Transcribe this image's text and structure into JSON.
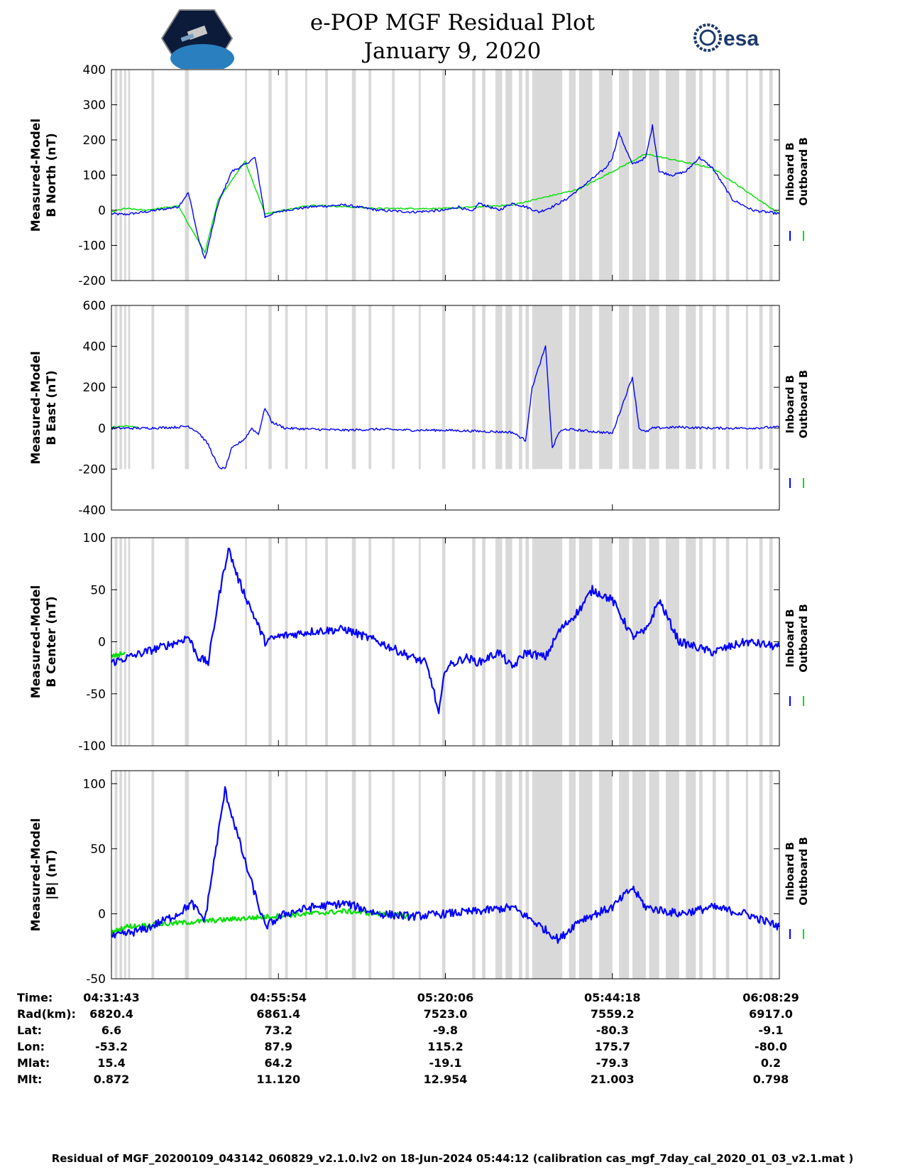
{
  "header": {
    "title_line1": "e-POP MGF Residual Plot",
    "title_line2": "January 9, 2020",
    "logo_left": "cassiope-satellite-logo",
    "logo_right_text": "esa"
  },
  "colors": {
    "inboard": "#0000ff",
    "outboard": "#00e000",
    "gap_shading": "#d9d9d9"
  },
  "legend": {
    "inboard_label": "Inboard B",
    "outboard_label": "Outboard B"
  },
  "chart_data": [
    {
      "type": "line",
      "title": "B North residual",
      "ylabel_line1": "Measured-Model",
      "ylabel_line2": "B North (nT)",
      "ylim": [
        -200,
        400
      ],
      "yticks": [
        -200,
        -100,
        0,
        100,
        200,
        300,
        400
      ],
      "xlim": [
        0,
        1
      ],
      "xtick_positions": [
        0,
        0.25,
        0.5,
        0.75,
        1
      ],
      "series": [
        {
          "name": "Inboard B",
          "x": [
            0,
            0.02,
            0.05,
            0.1,
            0.115,
            0.12,
            0.13,
            0.14,
            0.15,
            0.16,
            0.18,
            0.2,
            0.215,
            0.225,
            0.23,
            0.24,
            0.26,
            0.3,
            0.35,
            0.4,
            0.45,
            0.5,
            0.52,
            0.54,
            0.55,
            0.58,
            0.6,
            0.62,
            0.64,
            0.66,
            0.68,
            0.7,
            0.72,
            0.74,
            0.75,
            0.76,
            0.78,
            0.8,
            0.81,
            0.82,
            0.84,
            0.86,
            0.88,
            0.9,
            0.93,
            0.96,
            1.0
          ],
          "y": [
            -10,
            -12,
            -5,
            10,
            50,
            10,
            -80,
            -140,
            -60,
            20,
            110,
            130,
            150,
            40,
            -20,
            -10,
            0,
            10,
            15,
            0,
            -5,
            0,
            10,
            -5,
            20,
            0,
            20,
            10,
            -5,
            10,
            30,
            60,
            90,
            120,
            150,
            220,
            130,
            150,
            240,
            110,
            100,
            110,
            150,
            120,
            30,
            0,
            -10
          ]
        },
        {
          "name": "Outboard B",
          "x": [
            0,
            0.02,
            0.05,
            0.1,
            0.14,
            0.16,
            0.2,
            0.23,
            0.3,
            0.4,
            0.5,
            0.6,
            0.7,
            0.8,
            0.9,
            1.0
          ],
          "y": [
            -5,
            5,
            0,
            12,
            -120,
            30,
            140,
            -10,
            15,
            5,
            5,
            15,
            60,
            160,
            120,
            -10
          ]
        }
      ]
    },
    {
      "type": "line",
      "title": "B East residual",
      "ylabel_line1": "Measured-Model",
      "ylabel_line2": "B East (nT)",
      "ylim": [
        -400,
        600
      ],
      "yticks": [
        -400,
        -200,
        0,
        200,
        400,
        600
      ],
      "xlim": [
        0,
        1
      ],
      "xtick_positions": [
        0,
        0.25,
        0.5,
        0.75,
        1
      ],
      "series": [
        {
          "name": "Inboard B",
          "x": [
            0,
            0.05,
            0.1,
            0.115,
            0.13,
            0.145,
            0.16,
            0.17,
            0.18,
            0.2,
            0.21,
            0.22,
            0.23,
            0.24,
            0.26,
            0.3,
            0.35,
            0.4,
            0.45,
            0.5,
            0.55,
            0.6,
            0.62,
            0.63,
            0.65,
            0.66,
            0.67,
            0.68,
            0.7,
            0.75,
            0.77,
            0.78,
            0.79,
            0.8,
            0.81,
            0.85,
            0.9,
            0.95,
            1.0
          ],
          "y": [
            0,
            0,
            5,
            10,
            -20,
            -80,
            -190,
            -200,
            -100,
            -50,
            0,
            -30,
            100,
            30,
            0,
            -5,
            -10,
            -5,
            -10,
            -10,
            -15,
            -20,
            -60,
            200,
            400,
            -100,
            -20,
            -5,
            -10,
            -25,
            160,
            250,
            0,
            -20,
            0,
            5,
            0,
            0,
            5
          ]
        },
        {
          "name": "Outboard B",
          "x": [
            0,
            0.02,
            0.04
          ],
          "y": [
            5,
            10,
            5
          ]
        }
      ]
    },
    {
      "type": "line",
      "title": "B Center residual",
      "ylabel_line1": "Measured-Model",
      "ylabel_line2": "B Center (nT)",
      "ylim": [
        -100,
        100
      ],
      "yticks": [
        -100,
        -50,
        0,
        50,
        100
      ],
      "xlim": [
        0,
        1
      ],
      "xtick_positions": [
        0,
        0.25,
        0.5,
        0.75,
        1
      ],
      "series": [
        {
          "name": "Inboard B",
          "x": [
            0,
            0.05,
            0.1,
            0.115,
            0.13,
            0.145,
            0.16,
            0.175,
            0.19,
            0.23,
            0.25,
            0.3,
            0.35,
            0.4,
            0.45,
            0.47,
            0.48,
            0.49,
            0.5,
            0.53,
            0.55,
            0.58,
            0.6,
            0.62,
            0.65,
            0.67,
            0.7,
            0.72,
            0.75,
            0.78,
            0.8,
            0.82,
            0.85,
            0.9,
            0.95,
            1.0
          ],
          "y": [
            -20,
            -10,
            0,
            5,
            -15,
            -20,
            40,
            90,
            60,
            0,
            5,
            10,
            12,
            0,
            -15,
            -20,
            -40,
            -70,
            -25,
            -15,
            -20,
            -10,
            -25,
            -10,
            -15,
            10,
            30,
            50,
            40,
            5,
            10,
            40,
            0,
            -10,
            0,
            -5
          ]
        },
        {
          "name": "Outboard B",
          "x": [
            0,
            0.02
          ],
          "y": [
            -15,
            -10
          ]
        }
      ]
    },
    {
      "type": "line",
      "title": "|B| residual",
      "ylabel_line1": "Measured-Model",
      "ylabel_line2": "|B| (nT)",
      "ylim": [
        -50,
        110
      ],
      "yticks": [
        -50,
        0,
        50,
        100
      ],
      "xlim": [
        0,
        1
      ],
      "xtick_positions": [
        0,
        0.25,
        0.5,
        0.75,
        1
      ],
      "series": [
        {
          "name": "Inboard B",
          "x": [
            0,
            0.05,
            0.1,
            0.12,
            0.14,
            0.17,
            0.2,
            0.23,
            0.26,
            0.3,
            0.35,
            0.4,
            0.45,
            0.5,
            0.55,
            0.6,
            0.63,
            0.67,
            0.7,
            0.75,
            0.78,
            0.8,
            0.85,
            0.9,
            0.95,
            1.0
          ],
          "y": [
            -18,
            -12,
            0,
            8,
            -5,
            95,
            40,
            -10,
            0,
            5,
            8,
            0,
            -2,
            0,
            2,
            5,
            -5,
            -20,
            -5,
            5,
            20,
            5,
            0,
            5,
            0,
            -10
          ]
        },
        {
          "name": "Outboard B",
          "x": [
            0,
            0.02,
            0.35,
            0.45
          ],
          "y": [
            -15,
            -10,
            2,
            -2
          ]
        }
      ]
    }
  ],
  "shaded_gaps": [
    [
      0.005,
      0.009
    ],
    [
      0.012,
      0.016
    ],
    [
      0.019,
      0.022
    ],
    [
      0.025,
      0.028
    ],
    [
      0.06,
      0.064
    ],
    [
      0.11,
      0.116
    ],
    [
      0.2,
      0.203
    ],
    [
      0.235,
      0.24
    ],
    [
      0.26,
      0.264
    ],
    [
      0.29,
      0.293
    ],
    [
      0.32,
      0.324
    ],
    [
      0.36,
      0.366
    ],
    [
      0.385,
      0.389
    ],
    [
      0.42,
      0.424
    ],
    [
      0.46,
      0.463
    ],
    [
      0.495,
      0.5
    ],
    [
      0.54,
      0.545
    ],
    [
      0.555,
      0.56
    ],
    [
      0.575,
      0.585
    ],
    [
      0.59,
      0.6
    ],
    [
      0.61,
      0.615
    ],
    [
      0.62,
      0.625
    ],
    [
      0.63,
      0.675
    ],
    [
      0.685,
      0.695
    ],
    [
      0.7,
      0.72
    ],
    [
      0.73,
      0.75
    ],
    [
      0.76,
      0.775
    ],
    [
      0.78,
      0.8
    ],
    [
      0.805,
      0.82
    ],
    [
      0.83,
      0.85
    ],
    [
      0.86,
      0.875
    ],
    [
      0.88,
      0.885
    ],
    [
      0.9,
      0.905
    ],
    [
      0.92,
      0.925
    ],
    [
      0.95,
      0.953
    ],
    [
      0.97,
      0.975
    ],
    [
      0.985,
      0.99
    ]
  ],
  "info_table": {
    "labels": [
      "Time:",
      "Rad(km):",
      "Lat:",
      "Lon:",
      "Mlat:",
      "Mlt:"
    ],
    "columns": [
      [
        "04:31:43",
        "6820.4",
        "6.6",
        "-53.2",
        "15.4",
        "0.872"
      ],
      [
        "04:55:54",
        "6861.4",
        "73.2",
        "87.9",
        "64.2",
        "11.120"
      ],
      [
        "05:20:06",
        "7523.0",
        "-9.8",
        "115.2",
        "-19.1",
        "12.954"
      ],
      [
        "05:44:18",
        "7559.2",
        "-80.3",
        "175.7",
        "-79.3",
        "21.003"
      ],
      [
        "06:08:29",
        "6917.0",
        "-9.1",
        "-80.0",
        "0.2",
        "0.798"
      ]
    ]
  },
  "footer": "Residual of MGF_20200109_043142_060829_v2.1.0.lv2 on 18-Jun-2024 05:44:12 (calibration cas_mgf_7day_cal_2020_01_03_v2.1.mat )"
}
